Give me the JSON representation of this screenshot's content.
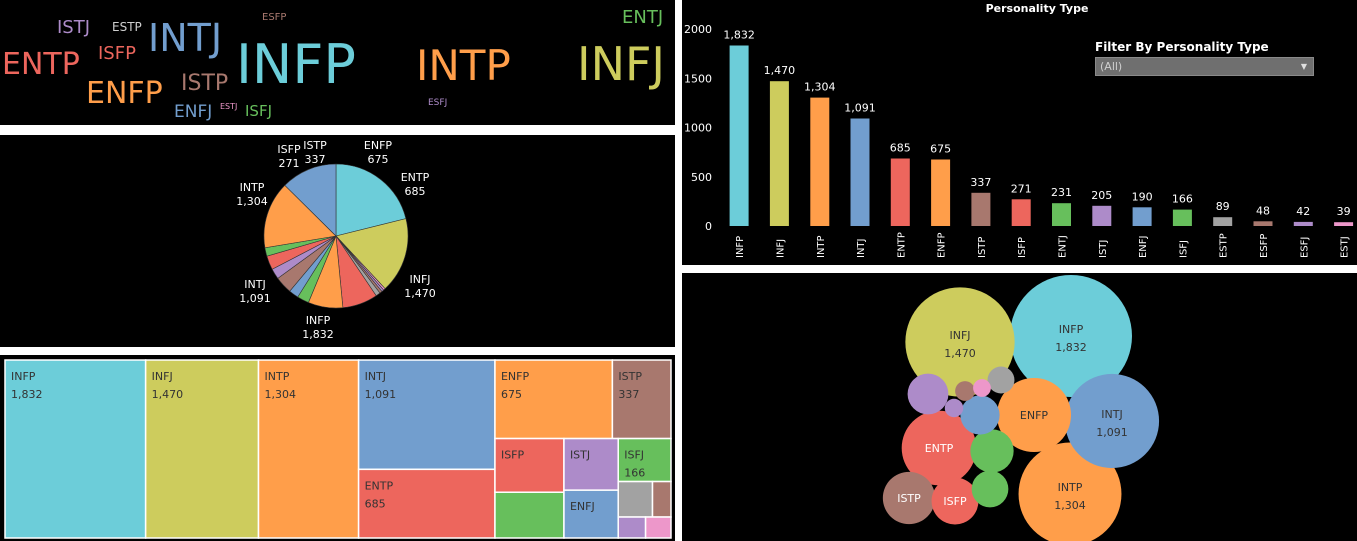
{
  "bar_panel": {
    "title": "Personality Type",
    "filter": {
      "label": "Filter By Personality Type",
      "value": "(All)",
      "chevron_icon": "chevron-down-icon"
    }
  },
  "chart_data": [
    {
      "type": "word-cloud",
      "words": [
        {
          "text": "INFP",
          "value": 1832,
          "color": "#6ccdd9"
        },
        {
          "text": "INFJ",
          "value": 1470,
          "color": "#cdcc5d"
        },
        {
          "text": "INTP",
          "value": 1304,
          "color": "#ff9e4a"
        },
        {
          "text": "INTJ",
          "value": 1091,
          "color": "#729ece"
        },
        {
          "text": "ENTP",
          "value": 685,
          "color": "#ed665d"
        },
        {
          "text": "ENFP",
          "value": 675,
          "color": "#ff9e4a"
        },
        {
          "text": "ISTP",
          "value": 337,
          "color": "#a8786e"
        },
        {
          "text": "ISFP",
          "value": 271,
          "color": "#ed665d"
        },
        {
          "text": "ENTJ",
          "value": 231,
          "color": "#67bf5c"
        },
        {
          "text": "ISTJ",
          "value": 205,
          "color": "#ad8bc9"
        },
        {
          "text": "ENFJ",
          "value": 190,
          "color": "#729ece"
        },
        {
          "text": "ISFJ",
          "value": 166,
          "color": "#67bf5c"
        },
        {
          "text": "ESTP",
          "value": 89,
          "color": "#cfcfcf"
        },
        {
          "text": "ESFP",
          "value": 48,
          "color": "#a8786e"
        },
        {
          "text": "ESFJ",
          "value": 42,
          "color": "#ad8bc9"
        },
        {
          "text": "ESTJ",
          "value": 39,
          "color": "#ed97ca"
        }
      ]
    },
    {
      "type": "pie",
      "slices": [
        {
          "label": "INFP",
          "value": 1832,
          "value_text": "1,832",
          "color": "#6ccdd9",
          "labeled": true
        },
        {
          "label": "INFJ",
          "value": 1470,
          "value_text": "1,470",
          "color": "#cdcc5d",
          "labeled": true
        },
        {
          "label": "ESTJ",
          "value": 39,
          "value_text": "39",
          "color": "#ed97ca",
          "labeled": false
        },
        {
          "label": "ESFJ",
          "value": 42,
          "value_text": "42",
          "color": "#ad8bc9",
          "labeled": false
        },
        {
          "label": "ESFP",
          "value": 48,
          "value_text": "48",
          "color": "#a8786e",
          "labeled": false
        },
        {
          "label": "ESTP",
          "value": 89,
          "value_text": "89",
          "color": "#a2a2a2",
          "labeled": false
        },
        {
          "label": "ENTP",
          "value": 685,
          "value_text": "685",
          "color": "#ed665d",
          "labeled": true
        },
        {
          "label": "ENFP",
          "value": 675,
          "value_text": "675",
          "color": "#ff9e4a",
          "labeled": true
        },
        {
          "label": "ENTJ",
          "value": 231,
          "value_text": "231",
          "color": "#67bf5c",
          "labeled": false
        },
        {
          "label": "ENFJ",
          "value": 190,
          "value_text": "190",
          "color": "#729ece",
          "labeled": false
        },
        {
          "label": "ISTP",
          "value": 337,
          "value_text": "337",
          "color": "#a8786e",
          "labeled": true
        },
        {
          "label": "ISTJ",
          "value": 205,
          "value_text": "205",
          "color": "#ad8bc9",
          "labeled": false
        },
        {
          "label": "ISFP",
          "value": 271,
          "value_text": "271",
          "color": "#ed665d",
          "labeled": true
        },
        {
          "label": "ISFJ",
          "value": 166,
          "value_text": "166",
          "color": "#67bf5c",
          "labeled": false
        },
        {
          "label": "INTP",
          "value": 1304,
          "value_text": "1,304",
          "color": "#ff9e4a",
          "labeled": true
        },
        {
          "label": "INTJ",
          "value": 1091,
          "value_text": "1,091",
          "color": "#729ece",
          "labeled": true
        }
      ]
    },
    {
      "type": "treemap",
      "items": [
        {
          "label": "INFP",
          "value": 1832,
          "value_text": "1,832",
          "color": "#6ccdd9",
          "show_label": true,
          "show_value": true
        },
        {
          "label": "INFJ",
          "value": 1470,
          "value_text": "1,470",
          "color": "#cdcc5d",
          "show_label": true,
          "show_value": true
        },
        {
          "label": "INTP",
          "value": 1304,
          "value_text": "1,304",
          "color": "#ff9e4a",
          "show_label": true,
          "show_value": true
        },
        {
          "label": "INTJ",
          "value": 1091,
          "value_text": "1,091",
          "color": "#729ece",
          "show_label": true,
          "show_value": true
        },
        {
          "label": "ENTP",
          "value": 685,
          "value_text": "685",
          "color": "#ed665d",
          "show_label": true,
          "show_value": true
        },
        {
          "label": "ENFP",
          "value": 675,
          "value_text": "675",
          "color": "#ff9e4a",
          "show_label": true,
          "show_value": true
        },
        {
          "label": "ISTP",
          "value": 337,
          "value_text": "337",
          "color": "#a8786e",
          "show_label": true,
          "show_value": true
        },
        {
          "label": "ISFP",
          "value": 271,
          "value_text": "271",
          "color": "#ed665d",
          "show_label": true,
          "show_value": false
        },
        {
          "label": "ENTJ",
          "value": 231,
          "value_text": "231",
          "color": "#67bf5c",
          "show_label": false,
          "show_value": false
        },
        {
          "label": "ISTJ",
          "value": 205,
          "value_text": "205",
          "color": "#ad8bc9",
          "show_label": true,
          "show_value": false
        },
        {
          "label": "ENFJ",
          "value": 190,
          "value_text": "190",
          "color": "#729ece",
          "show_label": true,
          "show_value": false
        },
        {
          "label": "ISFJ",
          "value": 166,
          "value_text": "166",
          "color": "#67bf5c",
          "show_label": true,
          "show_value": true
        },
        {
          "label": "ESTP",
          "value": 89,
          "value_text": "89",
          "color": "#a2a2a2",
          "show_label": false,
          "show_value": false
        },
        {
          "label": "ESFP",
          "value": 48,
          "value_text": "48",
          "color": "#a8786e",
          "show_label": false,
          "show_value": false
        },
        {
          "label": "ESFJ",
          "value": 42,
          "value_text": "42",
          "color": "#ad8bc9",
          "show_label": false,
          "show_value": false
        },
        {
          "label": "ESTJ",
          "value": 39,
          "value_text": "39",
          "color": "#ed97ca",
          "show_label": false,
          "show_value": false
        }
      ]
    },
    {
      "type": "bar",
      "title": "Personality Type",
      "categories": [
        "INFP",
        "INFJ",
        "INTP",
        "INTJ",
        "ENTP",
        "ENFP",
        "ISTP",
        "ISFP",
        "ENTJ",
        "ISTJ",
        "ENFJ",
        "ISFJ",
        "ESTP",
        "ESFP",
        "ESFJ",
        "ESTJ"
      ],
      "values": [
        1832,
        1470,
        1304,
        1091,
        685,
        675,
        337,
        271,
        231,
        205,
        190,
        166,
        89,
        48,
        42,
        39
      ],
      "value_labels": [
        "1,832",
        "1,470",
        "1,304",
        "1,091",
        "685",
        "675",
        "337",
        "271",
        "231",
        "205",
        "190",
        "166",
        "89",
        "48",
        "42",
        "39"
      ],
      "colors": [
        "#6ccdd9",
        "#cdcc5d",
        "#ff9e4a",
        "#729ece",
        "#ed665d",
        "#ff9e4a",
        "#a8786e",
        "#ed665d",
        "#67bf5c",
        "#ad8bc9",
        "#729ece",
        "#67bf5c",
        "#a2a2a2",
        "#a8786e",
        "#ad8bc9",
        "#ed97ca"
      ],
      "yticks": [
        {
          "value": 0,
          "label": "0"
        },
        {
          "value": 500,
          "label": "500"
        },
        {
          "value": 1000,
          "label": "1000"
        },
        {
          "value": 1500,
          "label": "1500"
        },
        {
          "value": 2000,
          "label": "2000"
        }
      ],
      "ylim": [
        0,
        2000
      ],
      "grid": false
    },
    {
      "type": "packed-bubble",
      "bubbles": [
        {
          "label": "INFP",
          "value": 1832,
          "value_text": "1,832",
          "color": "#6ccdd9",
          "show_label": true,
          "show_value": true
        },
        {
          "label": "INFJ",
          "value": 1470,
          "value_text": "1,470",
          "color": "#cdcc5d",
          "show_label": true,
          "show_value": true
        },
        {
          "label": "INTP",
          "value": 1304,
          "value_text": "1,304",
          "color": "#ff9e4a",
          "show_label": true,
          "show_value": true
        },
        {
          "label": "INTJ",
          "value": 1091,
          "value_text": "1,091",
          "color": "#729ece",
          "show_label": true,
          "show_value": true
        },
        {
          "label": "ENTP",
          "value": 685,
          "value_text": "685",
          "color": "#ed665d",
          "show_label": true,
          "show_value": false
        },
        {
          "label": "ENFP",
          "value": 675,
          "value_text": "675",
          "color": "#ff9e4a",
          "show_label": true,
          "show_value": false
        },
        {
          "label": "ISTP",
          "value": 337,
          "value_text": "337",
          "color": "#a8786e",
          "show_label": true,
          "show_value": false
        },
        {
          "label": "ISFP",
          "value": 271,
          "value_text": "271",
          "color": "#ed665d",
          "show_label": true,
          "show_value": false
        },
        {
          "label": "ENTJ",
          "value": 231,
          "value_text": "231",
          "color": "#67bf5c",
          "show_label": false,
          "show_value": false
        },
        {
          "label": "ISTJ",
          "value": 205,
          "value_text": "205",
          "color": "#ad8bc9",
          "show_label": false,
          "show_value": false
        },
        {
          "label": "ENFJ",
          "value": 190,
          "value_text": "190",
          "color": "#729ece",
          "show_label": false,
          "show_value": false
        },
        {
          "label": "ISFJ",
          "value": 166,
          "value_text": "166",
          "color": "#67bf5c",
          "show_label": false,
          "show_value": false
        },
        {
          "label": "ESTP",
          "value": 89,
          "value_text": "89",
          "color": "#a2a2a2",
          "show_label": false,
          "show_value": false
        },
        {
          "label": "ESFP",
          "value": 48,
          "value_text": "48",
          "color": "#a8786e",
          "show_label": false,
          "show_value": false
        },
        {
          "label": "ESFJ",
          "value": 42,
          "value_text": "42",
          "color": "#ad8bc9",
          "show_label": false,
          "show_value": false
        },
        {
          "label": "ESTJ",
          "value": 39,
          "value_text": "39",
          "color": "#ed97ca",
          "show_label": false,
          "show_value": false
        }
      ]
    }
  ]
}
